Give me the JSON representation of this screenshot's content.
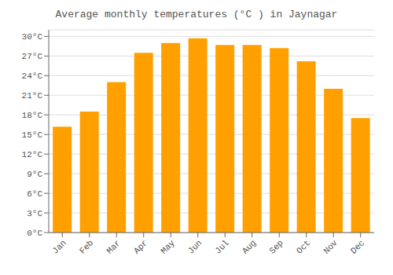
{
  "chart_data": {
    "type": "bar",
    "title": "Average monthly temperatures (°C ) in Jaynagar",
    "categories": [
      "Jan",
      "Feb",
      "Mar",
      "Apr",
      "May",
      "Jun",
      "Jul",
      "Aug",
      "Sep",
      "Oct",
      "Nov",
      "Dec"
    ],
    "values": [
      16.2,
      18.5,
      23.0,
      27.5,
      29.0,
      29.7,
      28.7,
      28.7,
      28.2,
      26.2,
      22.0,
      17.5
    ],
    "color": "#FFA000",
    "ylim": [
      0,
      31
    ],
    "yticks": [
      {
        "value": 0,
        "label": "0°C"
      },
      {
        "value": 3,
        "label": "3°C"
      },
      {
        "value": 6,
        "label": "6°C"
      },
      {
        "value": 9,
        "label": "9°C"
      },
      {
        "value": 12,
        "label": "12°C"
      },
      {
        "value": 15,
        "label": "15°C"
      },
      {
        "value": 18,
        "label": "18°C"
      },
      {
        "value": 21,
        "label": "21°C"
      },
      {
        "value": 24,
        "label": "24°C"
      },
      {
        "value": 27,
        "label": "27°C"
      },
      {
        "value": 30,
        "label": "30°C"
      }
    ],
    "grid": true
  }
}
